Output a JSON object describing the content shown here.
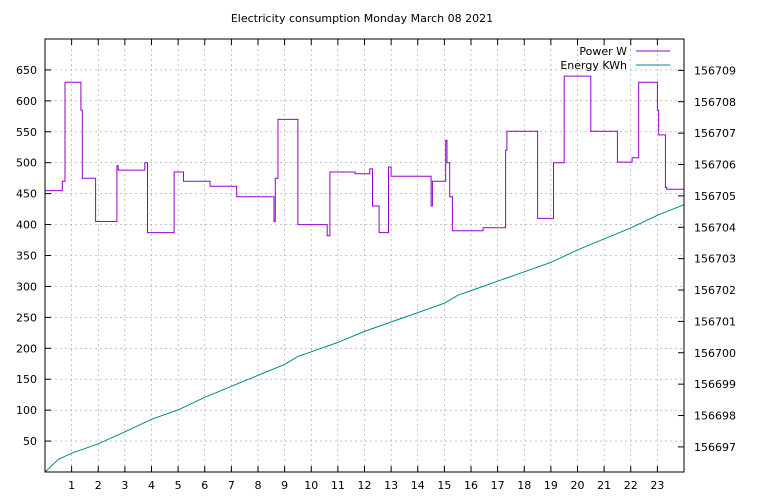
{
  "chart_data": {
    "type": "line",
    "title": "Electricity consumption Monday March 08 2021",
    "xlabel": "",
    "ylabel": "",
    "y2label": "",
    "xlim": [
      0,
      24
    ],
    "ylim": [
      0,
      700
    ],
    "y2lim": [
      156696.2,
      156710
    ],
    "x_ticks": [
      1,
      2,
      3,
      4,
      5,
      6,
      7,
      8,
      9,
      10,
      11,
      12,
      13,
      14,
      15,
      16,
      17,
      18,
      19,
      20,
      21,
      22,
      23
    ],
    "y_ticks": [
      50,
      100,
      150,
      200,
      250,
      300,
      350,
      400,
      450,
      500,
      550,
      600,
      650
    ],
    "y2_ticks": [
      156697,
      156698,
      156699,
      156700,
      156701,
      156702,
      156703,
      156704,
      156705,
      156706,
      156707,
      156708,
      156709
    ],
    "grid": true,
    "legend_position": "top-right",
    "series": [
      {
        "name": "Power W",
        "axis": "y",
        "color": "#9400d3",
        "step": true,
        "x": [
          0.0,
          0.65,
          0.75,
          1.35,
          1.4,
          1.65,
          1.9,
          2.7,
          2.75,
          3.75,
          3.85,
          4.75,
          4.85,
          5.2,
          6.0,
          6.2,
          7.0,
          7.2,
          8.5,
          8.6,
          8.65,
          8.75,
          9.3,
          9.5,
          10.6,
          10.7,
          11.65,
          12.2,
          12.3,
          12.55,
          12.9,
          13.0,
          14.05,
          14.5,
          14.55,
          15.05,
          15.1,
          15.2,
          15.3,
          16.35,
          16.45,
          17.3,
          17.35,
          18.5,
          18.55,
          19.1,
          19.5,
          19.9,
          20.5,
          21.5,
          22.05,
          22.3,
          23.0,
          23.05,
          23.3,
          23.35,
          23.5,
          24.0
        ],
        "y": [
          455,
          470,
          630,
          585,
          475,
          475,
          405,
          495,
          488,
          500,
          387,
          387,
          485,
          470,
          470,
          462,
          462,
          445,
          445,
          405,
          475,
          570,
          570,
          400,
          382,
          485,
          482,
          490,
          430,
          387,
          493,
          478,
          478,
          430,
          470,
          536,
          500,
          445,
          390,
          390,
          395,
          520,
          551,
          410,
          410,
          500,
          640,
          640,
          551,
          501,
          508,
          630,
          585,
          545,
          460,
          457,
          457,
          457
        ]
      },
      {
        "name": "Energy KWh",
        "axis": "y2",
        "color": "#008b8b",
        "step": false,
        "x": [
          0,
          0.5,
          1,
          2,
          3,
          4,
          5,
          6,
          7,
          8,
          9,
          9.5,
          10,
          11,
          12,
          13,
          14,
          15,
          15.5,
          16,
          17,
          18,
          19,
          20,
          21,
          22,
          23,
          24
        ],
        "y": [
          156696.2,
          156696.6,
          156696.8,
          156697.1,
          156697.48,
          156697.88,
          156698.18,
          156698.58,
          156698.93,
          156699.28,
          156699.63,
          156699.88,
          156700.03,
          156700.33,
          156700.68,
          156700.98,
          156701.28,
          156701.58,
          156701.83,
          156701.98,
          156702.28,
          156702.58,
          156702.88,
          156703.28,
          156703.63,
          156703.98,
          156704.38,
          156704.72
        ]
      }
    ]
  }
}
